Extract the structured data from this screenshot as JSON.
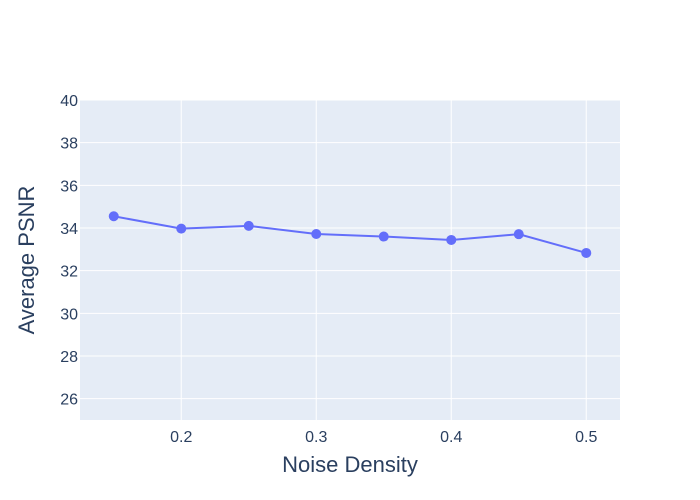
{
  "chart_data": {
    "type": "line",
    "title": "",
    "xlabel": "Noise Density",
    "ylabel": "Average PSNR",
    "xlim": [
      0.125,
      0.525
    ],
    "ylim": [
      25,
      40
    ],
    "x_ticks": [
      0.2,
      0.3,
      0.4,
      0.5
    ],
    "x_tick_labels": [
      "0.2",
      "0.3",
      "0.4",
      "0.5"
    ],
    "y_ticks": [
      26,
      28,
      30,
      32,
      34,
      36,
      38,
      40
    ],
    "y_tick_labels": [
      "26",
      "28",
      "30",
      "32",
      "34",
      "36",
      "38",
      "40"
    ],
    "grid": true,
    "legend": "none",
    "series": [
      {
        "x": [
          0.15,
          0.2,
          0.25,
          0.3,
          0.35,
          0.4,
          0.45,
          0.5
        ],
        "values": [
          34.55,
          33.97,
          34.1,
          33.72,
          33.6,
          33.44,
          33.71,
          32.83
        ],
        "color": "#636efa",
        "mode": "lines+markers"
      }
    ],
    "colors": {
      "plot_background": "#e5ecf6",
      "grid": "#ffffff",
      "text": "#2a3f5f"
    }
  }
}
